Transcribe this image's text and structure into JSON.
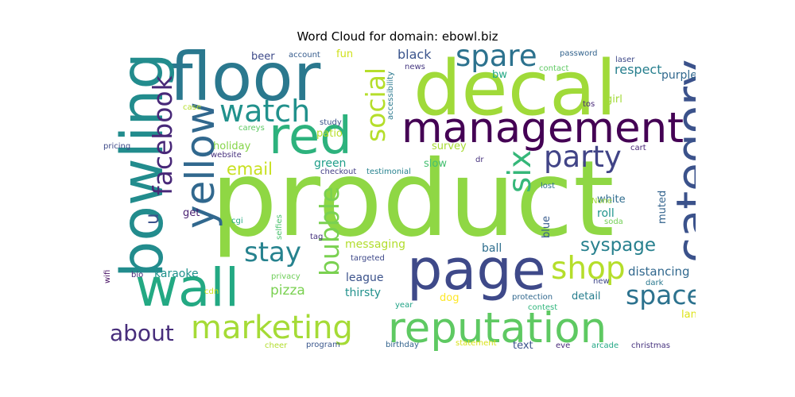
{
  "chart_data": {
    "type": "wordcloud",
    "title": "Word Cloud for domain: ebowl.biz",
    "words": [
      {
        "text": "product",
        "color": "#8fd744"
      },
      {
        "text": "floor",
        "color": "#2a788e"
      },
      {
        "text": "decal",
        "color": "#a0da39"
      },
      {
        "text": "bowling",
        "color": "#228c8d"
      },
      {
        "text": "page",
        "color": "#3e4989"
      },
      {
        "text": "reputation",
        "color": "#5ec962"
      },
      {
        "text": "management",
        "color": "#440154"
      },
      {
        "text": "red",
        "color": "#2db27d"
      },
      {
        "text": "wall",
        "color": "#23a983"
      },
      {
        "text": "category",
        "color": "#3b528b"
      },
      {
        "text": "yellow",
        "color": "#31688e"
      },
      {
        "text": "marketing",
        "color": "#a5db36"
      },
      {
        "text": "facebook",
        "color": "#482878"
      },
      {
        "text": "social",
        "color": "#b5de2b"
      },
      {
        "text": "spare",
        "color": "#2c728e"
      },
      {
        "text": "watch",
        "color": "#21918c"
      },
      {
        "text": "party",
        "color": "#414487"
      },
      {
        "text": "six",
        "color": "#35b779"
      },
      {
        "text": "bubble",
        "color": "#7ad151"
      },
      {
        "text": "shop",
        "color": "#b5de2b"
      },
      {
        "text": "stay",
        "color": "#26828e"
      },
      {
        "text": "space",
        "color": "#2c728e"
      },
      {
        "text": "syspage",
        "color": "#27808e"
      },
      {
        "text": "email",
        "color": "#c8e020"
      },
      {
        "text": "about",
        "color": "#472d7b"
      },
      {
        "text": "u",
        "color": "#3b528b"
      },
      {
        "text": "pizza",
        "color": "#7ad151"
      },
      {
        "text": "beer",
        "color": "#3e4a89"
      },
      {
        "text": "account",
        "color": "#365c8d"
      },
      {
        "text": "fun",
        "color": "#d0e11c"
      },
      {
        "text": "black",
        "color": "#3a548c"
      },
      {
        "text": "news",
        "color": "#453781"
      },
      {
        "text": "password",
        "color": "#33638d"
      },
      {
        "text": "laser",
        "color": "#3e4989"
      },
      {
        "text": "purple",
        "color": "#31688e"
      },
      {
        "text": "contact",
        "color": "#5ec962"
      },
      {
        "text": "bw",
        "color": "#22a884"
      },
      {
        "text": "respect",
        "color": "#277f8e"
      },
      {
        "text": "tos",
        "color": "#482878"
      },
      {
        "text": "accessibility",
        "color": "#2a788e"
      },
      {
        "text": "patio",
        "color": "#b8de29"
      },
      {
        "text": "careys",
        "color": "#5ec962"
      },
      {
        "text": "girl",
        "color": "#a2da37"
      },
      {
        "text": "case",
        "color": "#b5de2b"
      },
      {
        "text": "study",
        "color": "#3b528b"
      },
      {
        "text": "holiday",
        "color": "#86d549"
      },
      {
        "text": "survey",
        "color": "#a8db34"
      },
      {
        "text": "cart",
        "color": "#482576"
      },
      {
        "text": "pricing",
        "color": "#3e4a89"
      },
      {
        "text": "website",
        "color": "#46307e"
      },
      {
        "text": "green",
        "color": "#1f9e89"
      },
      {
        "text": "checkout",
        "color": "#433e85"
      },
      {
        "text": "testimonial",
        "color": "#26828e"
      },
      {
        "text": "slow",
        "color": "#44bf70"
      },
      {
        "text": "dr",
        "color": "#46327e"
      },
      {
        "text": "lost",
        "color": "#2c728e"
      },
      {
        "text": "get",
        "color": "#481f70"
      },
      {
        "text": "white",
        "color": "#2f6c8e"
      },
      {
        "text": "roll",
        "color": "#1f948c"
      },
      {
        "text": "None",
        "color": "#a0da39"
      },
      {
        "text": "muted",
        "color": "#33638d"
      },
      {
        "text": "cgi",
        "color": "#25ab82"
      },
      {
        "text": "selfies",
        "color": "#4ac16d"
      },
      {
        "text": "soda",
        "color": "#73d056"
      },
      {
        "text": "tag",
        "color": "#46337e"
      },
      {
        "text": "ball",
        "color": "#2e6e8e"
      },
      {
        "text": "blue",
        "color": "#375b8d"
      },
      {
        "text": "messaging",
        "color": "#b2dd2d"
      },
      {
        "text": "targeted",
        "color": "#3e4989"
      },
      {
        "text": "wifi",
        "color": "#471063"
      },
      {
        "text": "bio",
        "color": "#472c7a"
      },
      {
        "text": "karaoke",
        "color": "#20928c"
      },
      {
        "text": "league",
        "color": "#3b528b"
      },
      {
        "text": "distancing",
        "color": "#31688e"
      },
      {
        "text": "dark",
        "color": "#2a778e"
      },
      {
        "text": "new",
        "color": "#3f4788"
      },
      {
        "text": "privacy",
        "color": "#6ece58"
      },
      {
        "text": "thirsty",
        "color": "#21918c"
      },
      {
        "text": "cdn",
        "color": "#d2e21b"
      },
      {
        "text": "detail",
        "color": "#277e8e"
      },
      {
        "text": "year",
        "color": "#20a386"
      },
      {
        "text": "dog",
        "color": "#fde725"
      },
      {
        "text": "protection",
        "color": "#31688e"
      },
      {
        "text": "contest",
        "color": "#30b57c"
      },
      {
        "text": "lane",
        "color": "#dde318"
      },
      {
        "text": "cheer",
        "color": "#b2dd2d"
      },
      {
        "text": "program",
        "color": "#39568c"
      },
      {
        "text": "birthday",
        "color": "#33638d"
      },
      {
        "text": "statement",
        "color": "#d8e219"
      },
      {
        "text": "text",
        "color": "#3b528b"
      },
      {
        "text": "eve",
        "color": "#482979"
      },
      {
        "text": "arcade",
        "color": "#22a785"
      },
      {
        "text": "christmas",
        "color": "#46327e"
      }
    ]
  }
}
